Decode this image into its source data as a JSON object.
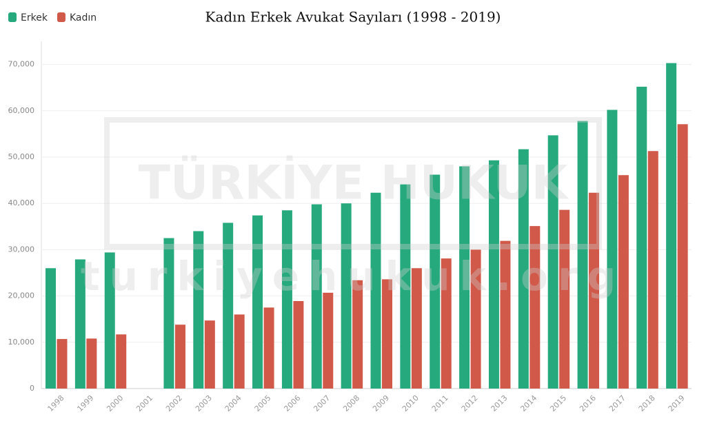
{
  "chart_data": {
    "type": "bar",
    "title": "Kadın Erkek Avukat Sayıları (1998 - 2019)",
    "categories": [
      "1998",
      "1999",
      "2000",
      "2001",
      "2002",
      "2003",
      "2004",
      "2005",
      "2006",
      "2007",
      "2008",
      "2009",
      "2010",
      "2011",
      "2012",
      "2013",
      "2014",
      "2015",
      "2016",
      "2017",
      "2018",
      "2019"
    ],
    "series": [
      {
        "name": "Erkek",
        "color": "#27a97e",
        "values": [
          26000,
          27900,
          29400,
          null,
          32500,
          34000,
          35800,
          37400,
          38500,
          39800,
          40000,
          42300,
          44100,
          46200,
          48000,
          49300,
          51700,
          54700,
          57800,
          60200,
          65200,
          70300
        ]
      },
      {
        "name": "Kadın",
        "color": "#d0594a",
        "values": [
          10700,
          10800,
          11700,
          null,
          13800,
          14700,
          16000,
          17500,
          18900,
          20700,
          23400,
          23600,
          26000,
          28100,
          30000,
          31900,
          35100,
          38600,
          42300,
          46100,
          51300,
          57100
        ]
      }
    ],
    "ylim": [
      0,
      75000
    ],
    "yticks": [
      0,
      {
        "value": 10000,
        "label": "10,000"
      },
      {
        "value": 20000,
        "label": "20,000"
      },
      {
        "value": 30000,
        "label": "30,000"
      },
      {
        "value": 40000,
        "label": "40,000"
      },
      {
        "value": 50000,
        "label": "50,000"
      },
      {
        "value": 60000,
        "label": "60,000"
      },
      {
        "value": 70000,
        "label": "70,000"
      }
    ],
    "grid": true,
    "legend": "top-left",
    "watermark": [
      "TÜRKİYE HUKUK",
      "turkiyehukuk.org"
    ]
  }
}
